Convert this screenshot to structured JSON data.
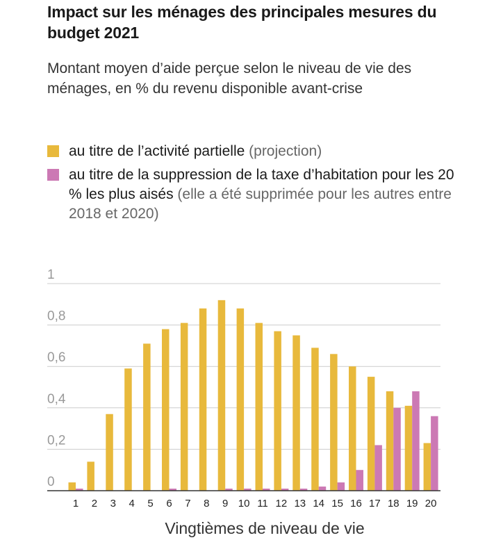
{
  "header": {
    "title": "Impact sur les ménages des principales mesures du budget 2021",
    "subtitle": "Montant moyen d’aide perçue selon le niveau de vie des ménages, en % du revenu disponible avant-crise"
  },
  "legend": {
    "item1_main": "au titre de l’activité partielle ",
    "item1_note": "(projection)",
    "item2_main": "au titre de la suppression de la taxe d’habitation pour les 20 % les plus aisés ",
    "item2_note": "(elle a été supprimée pour les autres entre 2018 et 2020)"
  },
  "colors": {
    "activite": "#e8b93c",
    "taxe": "#cc79b4",
    "grid": "#cccccc",
    "axis": "#333333"
  },
  "chart_data": {
    "type": "bar",
    "xlabel": "Vingtièmes de niveau de vie",
    "ylabel": "",
    "ylim": [
      0,
      1
    ],
    "yticks": [
      0,
      0.2,
      0.4,
      0.6,
      0.8,
      1
    ],
    "ytick_labels": [
      "0",
      "0,2",
      "0,4",
      "0,6",
      "0,8",
      "1"
    ],
    "grid": true,
    "categories": [
      "1",
      "2",
      "3",
      "4",
      "5",
      "6",
      "7",
      "8",
      "9",
      "10",
      "11",
      "12",
      "13",
      "14",
      "15",
      "16",
      "17",
      "18",
      "19",
      "20"
    ],
    "series": [
      {
        "name": "au titre de l’activité partielle (projection)",
        "color": "#e8b93c",
        "values": [
          0.04,
          0.14,
          0.37,
          0.59,
          0.71,
          0.78,
          0.81,
          0.88,
          0.92,
          0.88,
          0.81,
          0.77,
          0.75,
          0.69,
          0.66,
          0.6,
          0.55,
          0.48,
          0.41,
          0.23
        ]
      },
      {
        "name": "au titre de la suppression de la taxe d’habitation pour les 20 % les plus aisés",
        "color": "#cc79b4",
        "values": [
          0.01,
          0,
          0,
          0,
          0,
          0.01,
          0,
          0,
          0.01,
          0.01,
          0.01,
          0.01,
          0.01,
          0.02,
          0.04,
          0.1,
          0.22,
          0.4,
          0.48,
          0.36
        ]
      }
    ]
  }
}
